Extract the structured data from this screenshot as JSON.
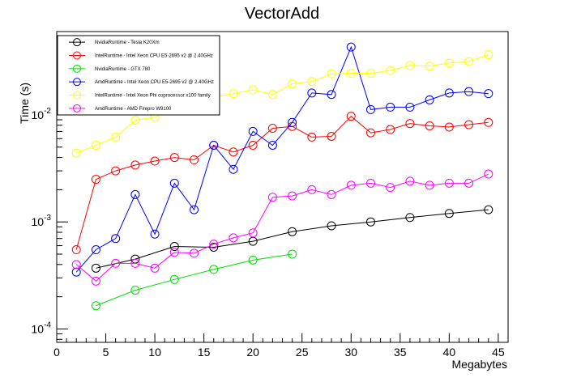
{
  "chart_data": {
    "type": "line",
    "title": "VectorAdd",
    "xlabel": "Megabytes",
    "ylabel": "Time (s)",
    "xlim": [
      0,
      46
    ],
    "ylim": [
      7.5e-05,
      0.06
    ],
    "yscale": "log",
    "grid": false,
    "legend_position": "top-left",
    "x_ticks": [
      0,
      5,
      10,
      15,
      20,
      25,
      30,
      35,
      40,
      45
    ],
    "y_ticks": [
      {
        "value": 0.0001,
        "base": "10",
        "exp": "-4"
      },
      {
        "value": 0.001,
        "base": "10",
        "exp": "-3"
      },
      {
        "value": 0.01,
        "base": "10",
        "exp": "-2"
      }
    ],
    "series": [
      {
        "name": "NvidiaRuntime - Tesla K20Xm",
        "color": "#000000",
        "x": [
          4,
          8,
          12,
          16,
          20,
          24,
          28,
          32,
          36,
          40,
          44
        ],
        "y": [
          0.00037,
          0.00045,
          0.00059,
          0.00058,
          0.00066,
          0.00081,
          0.00092,
          0.001,
          0.0011,
          0.0012,
          0.0013
        ]
      },
      {
        "name": "IntelRuntime - Intel Xeon CPU E5-2695 v2 @ 2.40GHz",
        "color": "#ff0000",
        "x": [
          2,
          4,
          6,
          8,
          10,
          12,
          14,
          16,
          18,
          20,
          22,
          24,
          26,
          28,
          30,
          32,
          34,
          36,
          38,
          40,
          42,
          44
        ],
        "y": [
          0.00055,
          0.0025,
          0.003,
          0.0034,
          0.0037,
          0.004,
          0.0038,
          0.0052,
          0.0045,
          0.0052,
          0.0075,
          0.0078,
          0.0062,
          0.0063,
          0.0097,
          0.0068,
          0.0073,
          0.0083,
          0.0079,
          0.0077,
          0.0081,
          0.0085
        ]
      },
      {
        "name": "NvidiaRuntime - GTX 780",
        "color": "#00dd00",
        "x": [
          4,
          8,
          12,
          16,
          20,
          24
        ],
        "y": [
          0.000165,
          0.00023,
          0.00029,
          0.00036,
          0.00044,
          0.0005
        ]
      },
      {
        "name": "AmdRuntime - Intel Xeon CPU E5-2695 v2 @ 2.40GHz",
        "color": "#0000ff",
        "x": [
          2,
          4,
          6,
          8,
          10,
          12,
          14,
          16,
          18,
          20,
          22,
          24,
          26,
          28,
          30,
          32,
          34,
          36,
          38,
          40,
          42,
          44
        ],
        "y": [
          0.00034,
          0.00055,
          0.0007,
          0.0018,
          0.00077,
          0.0023,
          0.0013,
          0.0052,
          0.0031,
          0.007,
          0.0052,
          0.0085,
          0.016,
          0.0155,
          0.043,
          0.0112,
          0.0118,
          0.0118,
          0.0138,
          0.016,
          0.0165,
          0.0158
        ]
      },
      {
        "name": "IntelRuntime - Intel Xeon Phi coprocessor x100 family",
        "color": "#ffff00",
        "x": [
          2,
          4,
          6,
          8,
          10,
          12,
          14,
          16,
          18,
          20,
          22,
          24,
          26,
          28,
          30,
          32,
          34,
          36,
          38,
          40,
          42,
          44
        ],
        "y": [
          0.0044,
          0.0052,
          0.0062,
          0.0089,
          0.0095,
          0.0118,
          0.0128,
          0.0148,
          0.0158,
          0.0172,
          0.0155,
          0.0195,
          0.0205,
          0.0242,
          0.0245,
          0.0245,
          0.026,
          0.029,
          0.0285,
          0.0305,
          0.0315,
          0.0365
        ]
      },
      {
        "name": "AmdRuntime - AMD Firepro W9100",
        "color": "#ff00ff",
        "x": [
          2,
          4,
          6,
          8,
          10,
          12,
          14,
          16,
          18,
          20,
          22,
          24,
          26,
          28,
          30,
          32,
          34,
          36,
          38,
          40,
          42,
          44
        ],
        "y": [
          0.0004,
          0.00028,
          0.00041,
          0.00041,
          0.00037,
          0.00052,
          0.00051,
          0.00062,
          0.00071,
          0.00079,
          0.0017,
          0.00175,
          0.002,
          0.0018,
          0.0022,
          0.0023,
          0.0021,
          0.0024,
          0.0022,
          0.0023,
          0.0023,
          0.0028
        ]
      }
    ]
  }
}
